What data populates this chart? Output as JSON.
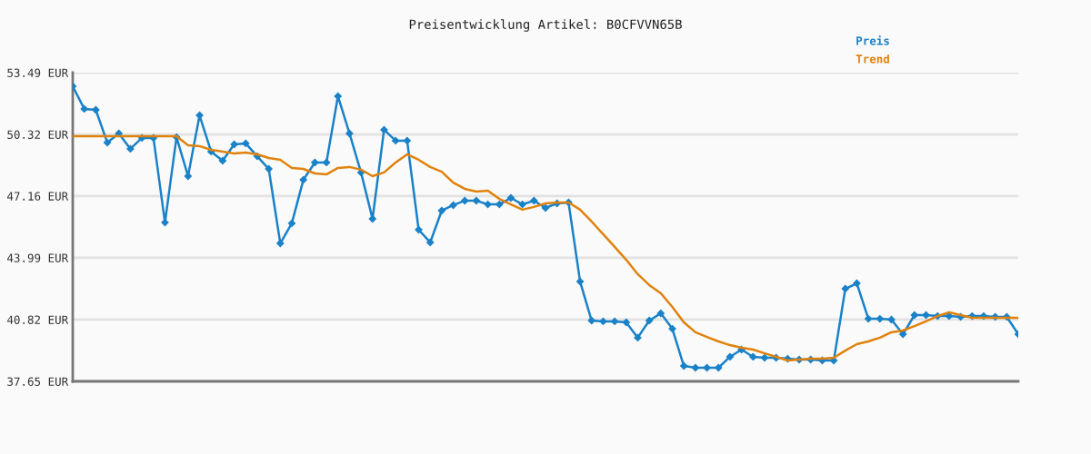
{
  "chart_data": {
    "type": "line",
    "title": "Preisentwicklung Artikel: B0CFVVN65B",
    "categories": [
      null,
      null,
      null,
      null,
      null,
      null,
      null,
      null,
      null,
      null,
      null,
      null,
      null,
      null,
      null,
      null,
      null,
      null,
      null,
      null,
      null,
      null,
      null,
      null,
      null,
      null,
      null,
      null,
      null,
      null,
      null,
      null,
      null,
      null,
      null,
      null,
      null,
      null,
      null,
      null,
      null,
      null,
      null,
      null,
      null,
      null,
      null,
      null,
      null,
      null,
      null,
      null,
      null,
      null,
      null,
      null,
      null,
      null,
      null,
      null,
      null,
      null,
      null,
      null,
      null,
      null,
      null,
      null,
      null,
      null,
      null,
      null,
      null,
      null,
      null,
      null,
      null,
      null,
      null,
      null,
      null,
      null,
      null
    ],
    "series": [
      {
        "name": "Preis",
        "color": "#1a82c8",
        "marker": "diamond",
        "values": [
          52.79,
          51.63,
          51.58,
          49.9,
          50.37,
          49.58,
          50.14,
          50.14,
          45.8,
          50.18,
          48.18,
          51.3,
          49.44,
          48.97,
          49.81,
          49.86,
          49.2,
          48.55,
          44.73,
          45.76,
          47.99,
          48.88,
          48.88,
          52.28,
          50.37,
          48.37,
          45.99,
          50.56,
          50.0,
          50.0,
          45.43,
          44.78,
          46.41,
          46.69,
          46.92,
          46.92,
          46.73,
          46.73,
          47.06,
          46.73,
          46.92,
          46.55,
          46.78,
          46.83,
          42.77,
          40.77,
          40.73,
          40.73,
          40.68,
          39.89,
          40.77,
          41.14,
          40.35,
          38.44,
          38.35,
          38.35,
          38.35,
          38.91,
          39.28,
          38.91,
          38.86,
          38.86,
          38.81,
          38.77,
          38.77,
          38.72,
          38.72,
          42.4,
          42.68,
          40.86,
          40.86,
          40.82,
          40.07,
          41.05,
          41.05,
          41.0,
          41.0,
          40.96,
          41.0,
          41.0,
          40.96,
          40.96,
          40.07
        ]
      },
      {
        "name": "Trend",
        "color": "#e0820e",
        "marker": "none",
        "values": [
          50.23,
          50.23,
          50.23,
          50.23,
          50.23,
          50.23,
          50.23,
          50.23,
          50.23,
          50.23,
          49.76,
          49.72,
          49.53,
          49.44,
          49.34,
          49.39,
          49.3,
          49.11,
          49.02,
          48.6,
          48.55,
          48.32,
          48.27,
          48.6,
          48.65,
          48.51,
          48.18,
          48.37,
          48.88,
          49.3,
          49.02,
          48.65,
          48.41,
          47.85,
          47.53,
          47.39,
          47.43,
          47.01,
          46.73,
          46.46,
          46.6,
          46.78,
          46.83,
          46.83,
          46.46,
          45.85,
          45.2,
          44.55,
          43.89,
          43.15,
          42.59,
          42.17,
          41.47,
          40.68,
          40.17,
          39.93,
          39.7,
          39.51,
          39.37,
          39.28,
          39.09,
          38.91,
          38.72,
          38.77,
          38.81,
          38.81,
          38.86,
          39.23,
          39.56,
          39.7,
          39.89,
          40.17,
          40.26,
          40.49,
          40.73,
          41.0,
          41.19,
          41.05,
          40.91,
          40.91,
          40.91,
          40.91,
          40.91
        ]
      }
    ],
    "ylim": [
      37.65,
      53.49
    ],
    "yticks": [
      {
        "value": 37.65,
        "label": "37.65 EUR"
      },
      {
        "value": 40.82,
        "label": "40.82 EUR"
      },
      {
        "value": 43.99,
        "label": "43.99 EUR"
      },
      {
        "value": 47.16,
        "label": "47.16 EUR"
      },
      {
        "value": 50.32,
        "label": "50.32 EUR"
      },
      {
        "value": 53.49,
        "label": "53.49 EUR"
      }
    ],
    "grid": "y",
    "legend": "top right",
    "tick_labels": "y",
    "line_style": "solid"
  }
}
